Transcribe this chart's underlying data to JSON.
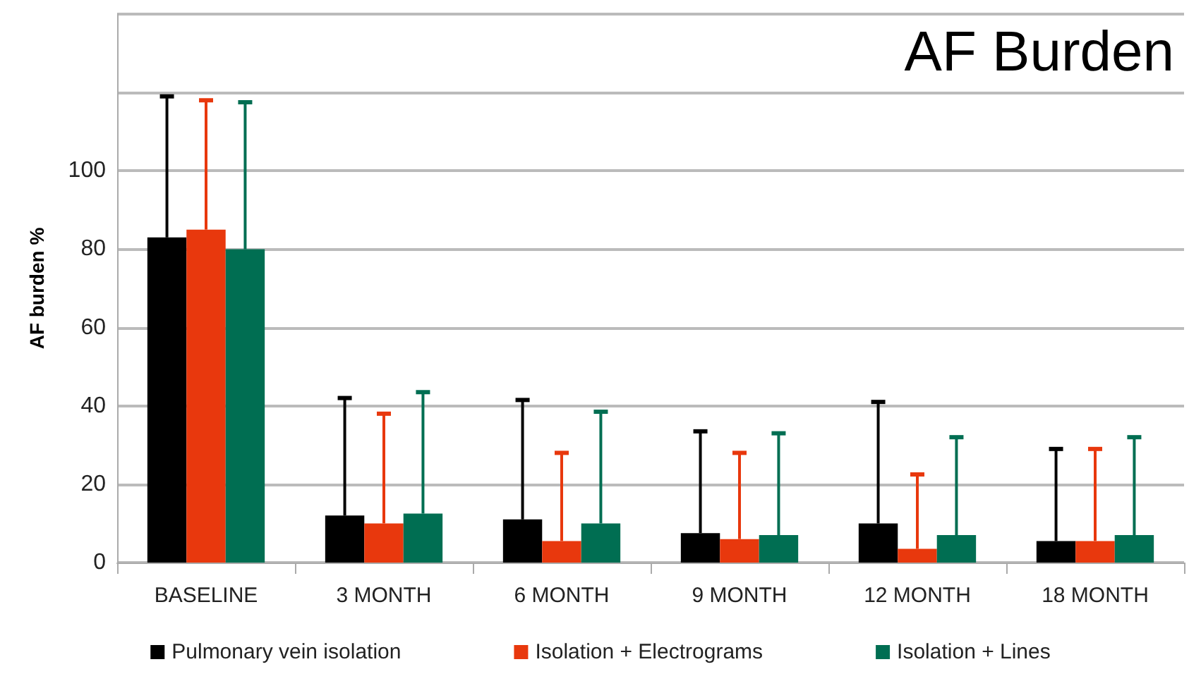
{
  "chart_data": {
    "type": "bar",
    "title": "AF Burden",
    "ylabel": "AF burden %",
    "categories": [
      "BASELINE",
      "3 MONTH",
      "6 MONTH",
      "9 MONTH",
      "12 MONTH",
      "18 MONTH"
    ],
    "series": [
      {
        "name": "Pulmonary vein isolation",
        "color": "#000000",
        "values": [
          83,
          12,
          11,
          7.5,
          10,
          5.5
        ],
        "errors": [
          [
            83,
            119
          ],
          [
            12,
            42
          ],
          [
            11,
            41.5
          ],
          [
            7.5,
            33.5
          ],
          [
            10,
            41
          ],
          [
            5.5,
            29
          ]
        ]
      },
      {
        "name": "Isolation + Electrograms",
        "color": "#e8380d",
        "values": [
          85,
          10,
          5.5,
          6,
          3.5,
          5.5
        ],
        "errors": [
          [
            85,
            118
          ],
          [
            10,
            38
          ],
          [
            5.5,
            28
          ],
          [
            6,
            28
          ],
          [
            3.5,
            22.5
          ],
          [
            5.5,
            29
          ]
        ]
      },
      {
        "name": "Isolation + Lines",
        "color": "#006e52",
        "values": [
          80,
          12.5,
          10,
          7,
          7,
          7
        ],
        "errors": [
          [
            80,
            117.5
          ],
          [
            12.5,
            43.5
          ],
          [
            10,
            38.5
          ],
          [
            7,
            33
          ],
          [
            7,
            32
          ],
          [
            7,
            32
          ]
        ]
      }
    ],
    "ylim": [
      0,
      140
    ],
    "yticks": [
      0,
      20,
      40,
      60,
      80,
      100,
      {
        "value": 120,
        "label": null
      },
      {
        "value": 140,
        "label": null
      }
    ],
    "grid": true,
    "legend": "bottom"
  }
}
